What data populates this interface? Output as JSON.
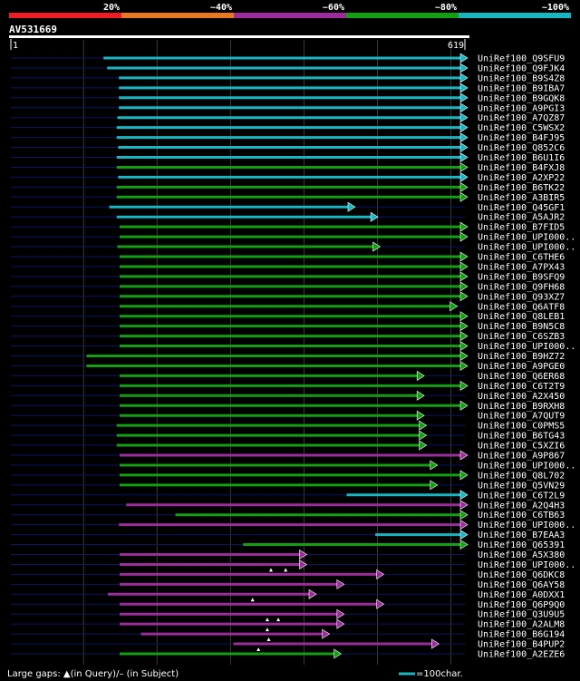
{
  "chart_data": {
    "type": "alignment-overview",
    "title": "AV531669",
    "query_range": [
      1,
      619
    ],
    "axis_start_label": "1",
    "axis_end_label": "619",
    "scale_bar_label": "=100char.",
    "footer": "Large gaps: ▲(in Query)/– (in Subject)",
    "identity_legend": [
      {
        "label": "20%",
        "color": "#ee1c25"
      },
      {
        "label": "~40%",
        "color": "#e87722"
      },
      {
        "label": "~60%",
        "color": "#9c2c9c"
      },
      {
        "label": "~80%",
        "color": "#129f12"
      },
      {
        "label": "~100%",
        "color": "#18b5c2"
      }
    ],
    "colors": {
      "cyan": "#18b5c2",
      "green": "#129f12",
      "purple": "#9c2c9c",
      "backbone": "#0c1466",
      "grid": "#3a3a3a"
    },
    "hits": [
      {
        "name": "UniRef100_Q9SFU9",
        "start": 127,
        "end": 619,
        "color": "cyan"
      },
      {
        "name": "UniRef100_Q9FJK4",
        "start": 132,
        "end": 619,
        "color": "cyan"
      },
      {
        "name": "UniRef100_B9S4Z8",
        "start": 148,
        "end": 619,
        "color": "cyan"
      },
      {
        "name": "UniRef100_B9IBA7",
        "start": 148,
        "end": 619,
        "color": "cyan"
      },
      {
        "name": "UniRef100_B9GQK8",
        "start": 148,
        "end": 619,
        "color": "cyan"
      },
      {
        "name": "UniRef100_A9PGI3",
        "start": 148,
        "end": 619,
        "color": "cyan"
      },
      {
        "name": "UniRef100_A7QZ87",
        "start": 146,
        "end": 619,
        "color": "cyan"
      },
      {
        "name": "UniRef100_C5WSX2",
        "start": 145,
        "end": 619,
        "color": "cyan"
      },
      {
        "name": "UniRef100_B4FJ95",
        "start": 145,
        "end": 619,
        "color": "cyan"
      },
      {
        "name": "UniRef100_Q852C6",
        "start": 147,
        "end": 619,
        "color": "cyan"
      },
      {
        "name": "UniRef100_B6U1I6",
        "start": 145,
        "end": 619,
        "color": "cyan"
      },
      {
        "name": "UniRef100_B4FXJ8",
        "start": 145,
        "end": 619,
        "color": "green"
      },
      {
        "name": "UniRef100_A2XP22",
        "start": 147,
        "end": 619,
        "color": "cyan"
      },
      {
        "name": "UniRef100_B6TK22",
        "start": 145,
        "end": 619,
        "color": "green"
      },
      {
        "name": "UniRef100_A3BIR5",
        "start": 145,
        "end": 619,
        "color": "green"
      },
      {
        "name": "UniRef100_Q45GF1",
        "start": 135,
        "end": 466,
        "color": "cyan"
      },
      {
        "name": "UniRef100_A5AJR2",
        "start": 145,
        "end": 497,
        "color": "cyan"
      },
      {
        "name": "UniRef100_B7FID5",
        "start": 149,
        "end": 619,
        "color": "green"
      },
      {
        "name": "UniRef100_UPI000..",
        "start": 149,
        "end": 619,
        "color": "green"
      },
      {
        "name": "UniRef100_UPI000..",
        "start": 146,
        "end": 500,
        "color": "green"
      },
      {
        "name": "UniRef100_C6THE6",
        "start": 149,
        "end": 619,
        "color": "green"
      },
      {
        "name": "UniRef100_A7PX43",
        "start": 149,
        "end": 619,
        "color": "green"
      },
      {
        "name": "UniRef100_B9SFQ9",
        "start": 149,
        "end": 619,
        "color": "green"
      },
      {
        "name": "UniRef100_Q9FH68",
        "start": 149,
        "end": 619,
        "color": "green"
      },
      {
        "name": "UniRef100_Q93XZ7",
        "start": 149,
        "end": 619,
        "color": "green"
      },
      {
        "name": "UniRef100_Q6ATF8",
        "start": 149,
        "end": 605,
        "color": "green"
      },
      {
        "name": "UniRef100_Q8LEB1",
        "start": 149,
        "end": 619,
        "color": "green"
      },
      {
        "name": "UniRef100_B9N5C8",
        "start": 149,
        "end": 619,
        "color": "green"
      },
      {
        "name": "UniRef100_C6SZB3",
        "start": 149,
        "end": 619,
        "color": "green"
      },
      {
        "name": "UniRef100_UPI000..",
        "start": 149,
        "end": 619,
        "color": "green"
      },
      {
        "name": "UniRef100_B9HZ72",
        "start": 104,
        "end": 619,
        "color": "green"
      },
      {
        "name": "UniRef100_A9PGE0",
        "start": 104,
        "end": 619,
        "color": "green"
      },
      {
        "name": "UniRef100_Q6ER68",
        "start": 149,
        "end": 560,
        "color": "green"
      },
      {
        "name": "UniRef100_C6T2T9",
        "start": 149,
        "end": 619,
        "color": "green"
      },
      {
        "name": "UniRef100_A2X450",
        "start": 149,
        "end": 560,
        "color": "green"
      },
      {
        "name": "UniRef100_B9RXH8",
        "start": 149,
        "end": 619,
        "color": "green"
      },
      {
        "name": "UniRef100_A7QUT9",
        "start": 149,
        "end": 560,
        "color": "green"
      },
      {
        "name": "UniRef100_C0PMS5",
        "start": 145,
        "end": 563,
        "color": "green"
      },
      {
        "name": "UniRef100_B6TG43",
        "start": 145,
        "end": 563,
        "color": "green"
      },
      {
        "name": "UniRef100_C5XZI6",
        "start": 145,
        "end": 563,
        "color": "green"
      },
      {
        "name": "UniRef100_A9P867",
        "start": 149,
        "end": 619,
        "color": "purple"
      },
      {
        "name": "UniRef100_UPI000..",
        "start": 149,
        "end": 578,
        "color": "green"
      },
      {
        "name": "UniRef100_Q8L702",
        "start": 149,
        "end": 619,
        "color": "green"
      },
      {
        "name": "UniRef100_Q5VN29",
        "start": 149,
        "end": 578,
        "color": "green"
      },
      {
        "name": "UniRef100_C6T2L9",
        "start": 458,
        "end": 619,
        "color": "cyan"
      },
      {
        "name": "UniRef100_A2Q4H3",
        "start": 158,
        "end": 619,
        "color": "purple"
      },
      {
        "name": "UniRef100_C6TB63",
        "start": 225,
        "end": 619,
        "color": "green"
      },
      {
        "name": "UniRef100_UPI000..",
        "start": 148,
        "end": 619,
        "color": "purple"
      },
      {
        "name": "UniRef100_B7EAA3",
        "start": 497,
        "end": 619,
        "color": "cyan"
      },
      {
        "name": "UniRef100_Q65391",
        "start": 317,
        "end": 619,
        "color": "green"
      },
      {
        "name": "UniRef100_A5X380",
        "start": 149,
        "end": 400,
        "color": "purple"
      },
      {
        "name": "UniRef100_UPI000..",
        "start": 149,
        "end": 400,
        "color": "purple"
      },
      {
        "name": "UniRef100_Q6DKC8",
        "start": 149,
        "end": 505,
        "color": "purple"
      },
      {
        "name": "UniRef100_Q6AY58",
        "start": 149,
        "end": 451,
        "color": "purple"
      },
      {
        "name": "UniRef100_A0DXX1",
        "start": 133,
        "end": 413,
        "color": "purple"
      },
      {
        "name": "UniRef100_Q6P9Q0",
        "start": 149,
        "end": 505,
        "color": "purple"
      },
      {
        "name": "UniRef100_Q3U9U5",
        "start": 149,
        "end": 451,
        "color": "purple"
      },
      {
        "name": "UniRef100_A2ALM8",
        "start": 149,
        "end": 451,
        "color": "purple"
      },
      {
        "name": "UniRef100_B6G194",
        "start": 178,
        "end": 431,
        "color": "purple"
      },
      {
        "name": "UniRef100_B4PUP2",
        "start": 304,
        "end": 580,
        "color": "purple"
      },
      {
        "name": "UniRef100_A2EZE6",
        "start": 149,
        "end": 447,
        "color": "green"
      }
    ]
  }
}
